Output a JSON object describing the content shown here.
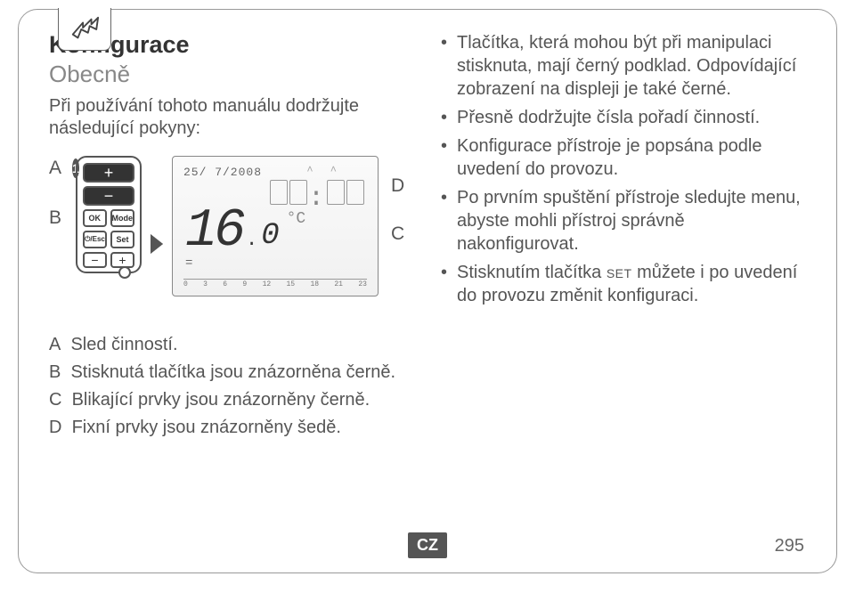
{
  "colors": {
    "text": "#5a5a5a",
    "heading": "#333333",
    "muted": "#888888",
    "border": "#999999",
    "badge_bg": "#555555",
    "badge_fg": "#ffffff",
    "btn_dark": "#333333"
  },
  "icon": {
    "name": "hand-icon"
  },
  "title": "Konfigurace",
  "subtitle": "Obecně",
  "intro": "Při používání tohoto manuálu dodržujte následující pokyny:",
  "diagram": {
    "labels": {
      "A": "A",
      "B": "B",
      "C": "C",
      "D": "D"
    },
    "step_badge": "1",
    "controller_buttons": {
      "plus": "+",
      "minus": "−",
      "ok": "OK",
      "mode": "Mode",
      "esc": "⏻/Esc",
      "set": "Set",
      "small_minus": "−",
      "small_plus": "+"
    },
    "lcd": {
      "date": "25/ 7/2008",
      "time_placeholder": "00:00",
      "temp_main": "16",
      "temp_dec": "0",
      "unit": "°C",
      "scale_ticks": [
        "0",
        "3",
        "6",
        "9",
        "12",
        "15",
        "18",
        "21",
        "23"
      ]
    }
  },
  "bullets": [
    "Tlačítka, která mohou být při manipulaci stisknuta, mají černý podklad. Odpovídající zobrazení na displeji je také černé.",
    "Přesně dodržujte čísla pořadí činností.",
    "Konfigurace přístroje je popsána podle uvedení do provozu.",
    "Po prvním spuštění přístroje sledujte menu, abyste mohli přístroj správně nakonfigurovat.",
    "Stisknutím tlačítka SET můžete i po uvedení do provozu změnit konfiguraci."
  ],
  "legend": {
    "A": "Sled činností.",
    "B": "Stisknutá tlačítka jsou znázorněna černě.",
    "C": "Blikající prvky jsou znázorněny černě.",
    "D": "Fixní prvky jsou znázorněny šedě."
  },
  "footer": {
    "lang": "CZ",
    "page": "295"
  }
}
